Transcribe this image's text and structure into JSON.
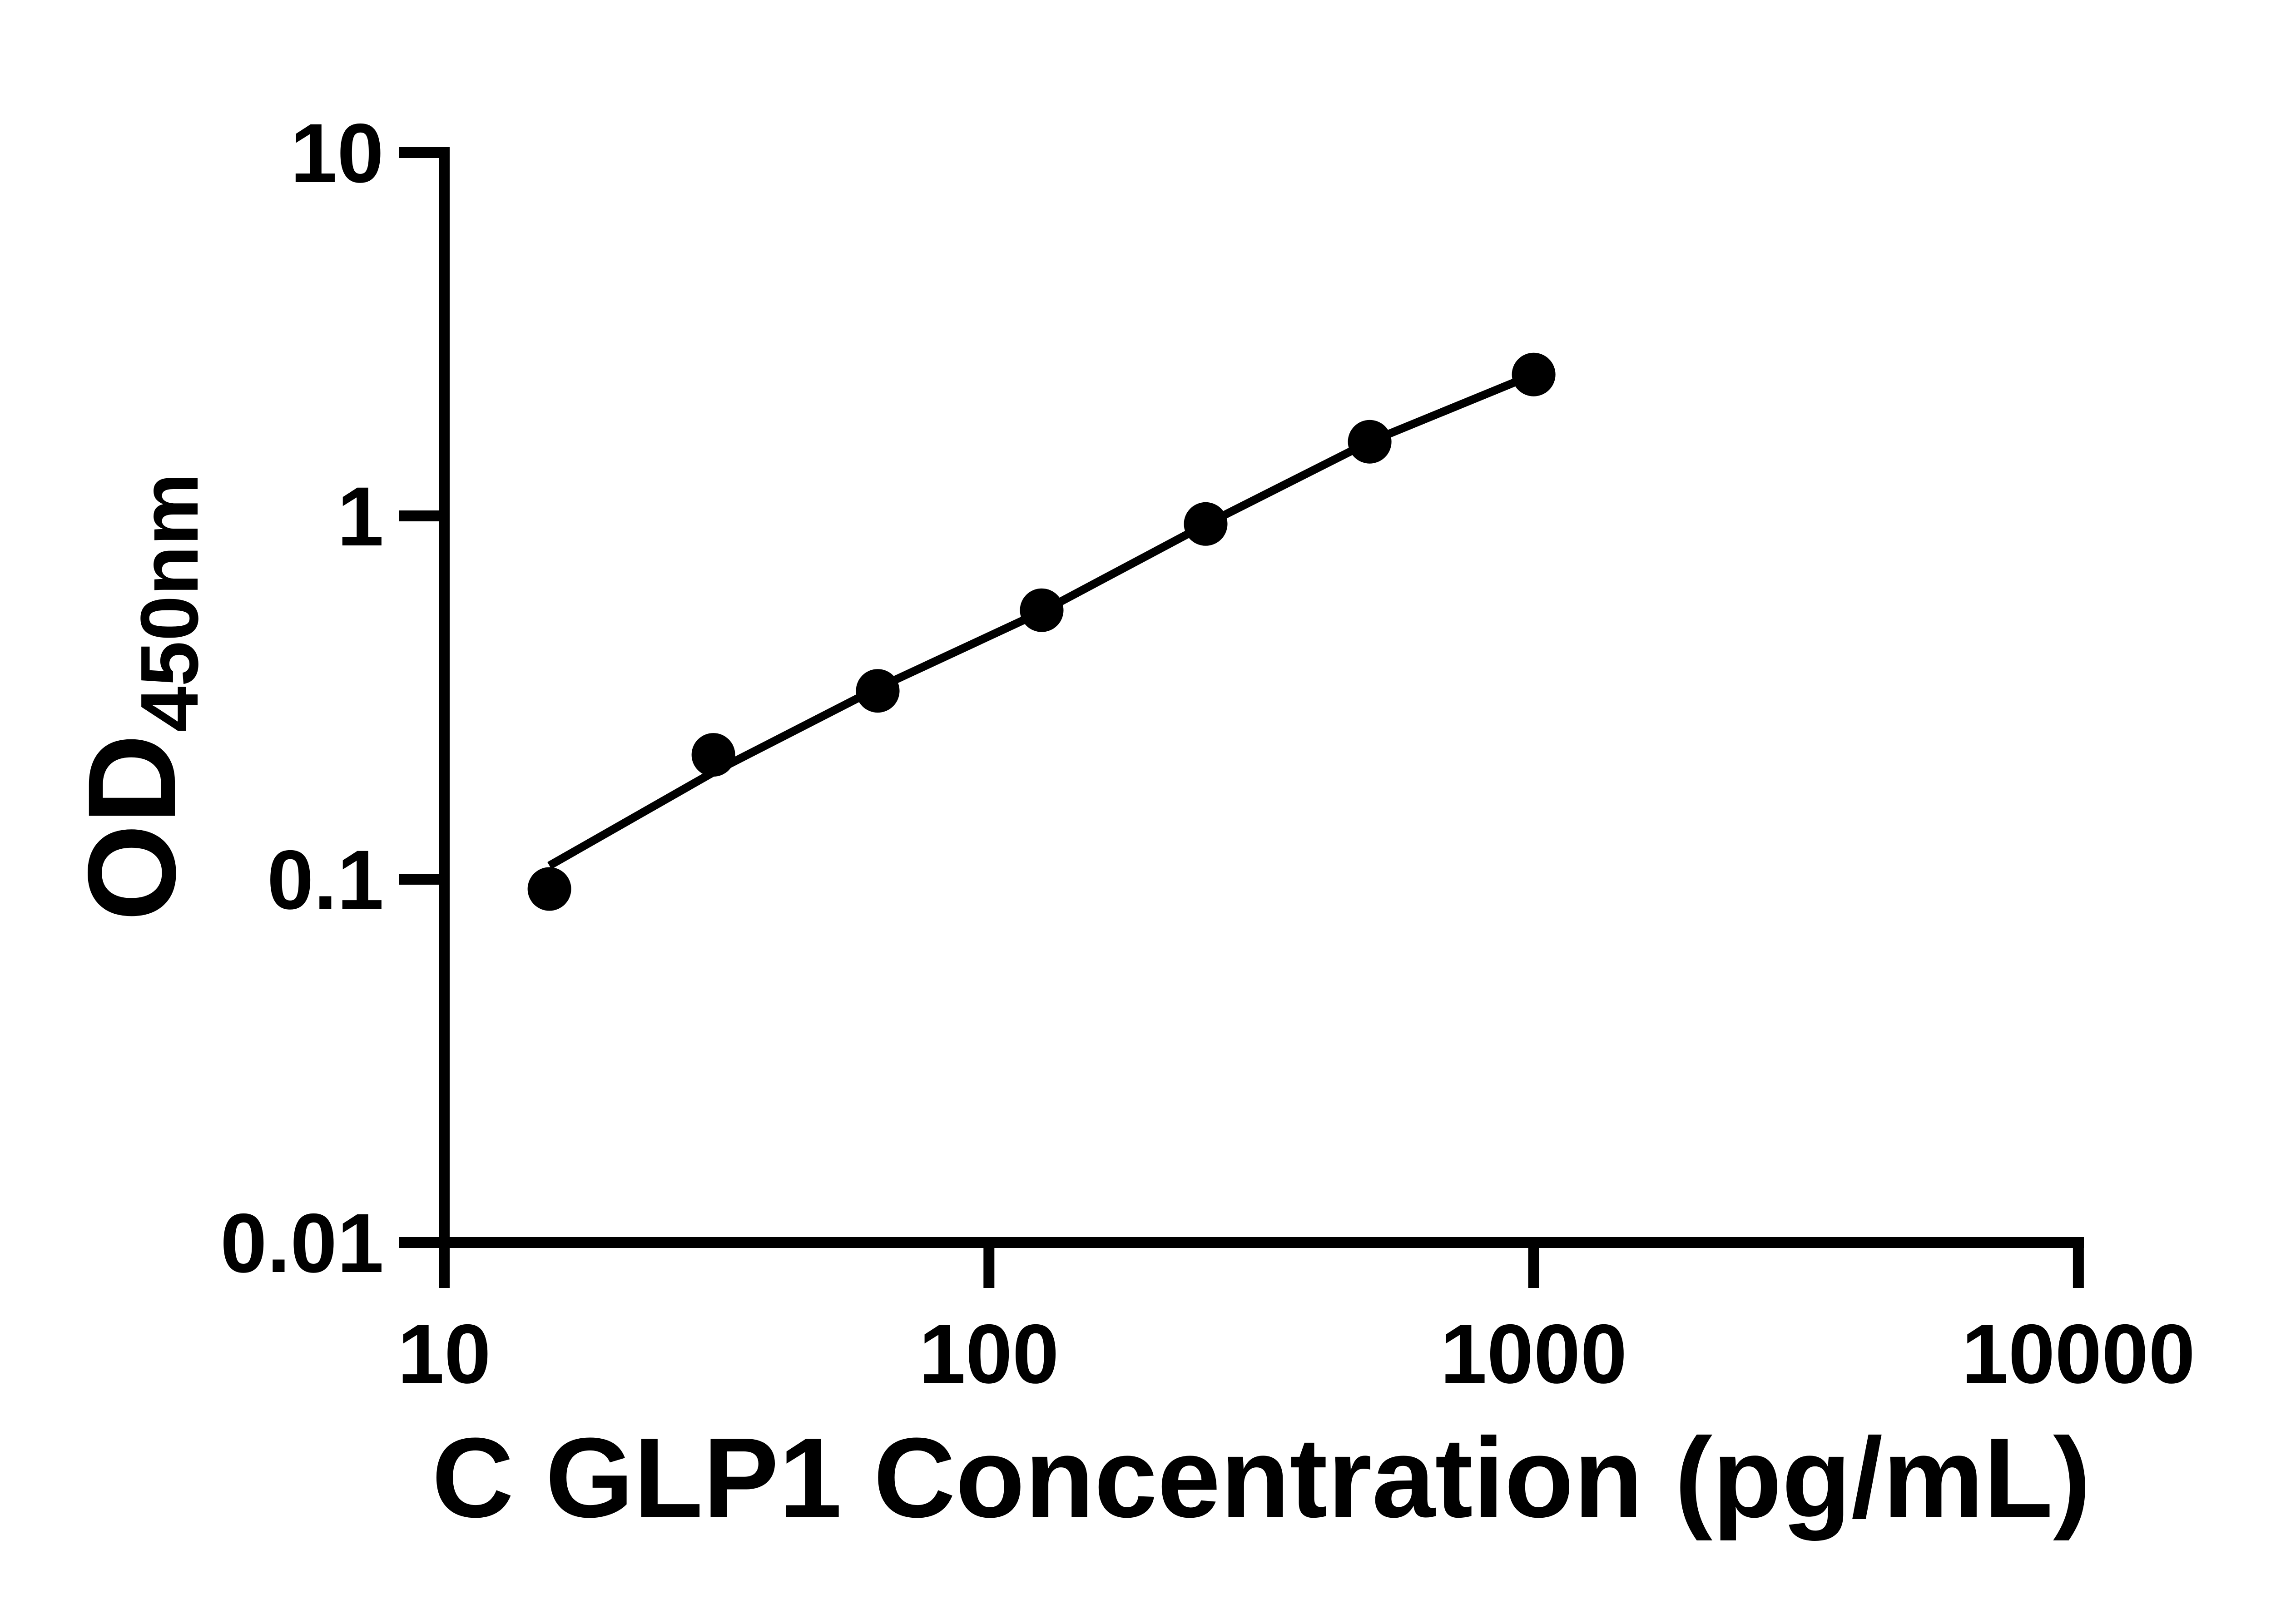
{
  "figure": {
    "background_color": "#ffffff",
    "ink_color": "#000000"
  },
  "chart_data": {
    "type": "scatter",
    "title": "",
    "xlabel": "C GLP1 Concentration (pg/mL)",
    "ylabel_main": "OD",
    "ylabel_sub": "450nm",
    "x_scale": "log",
    "y_scale": "log",
    "xlim": [
      10,
      10000
    ],
    "ylim": [
      0.01,
      10
    ],
    "x_ticks": [
      10,
      100,
      1000,
      10000
    ],
    "x_tick_labels": [
      "10",
      "100",
      "1000",
      "10000"
    ],
    "y_ticks": [
      10,
      1,
      0.1,
      0.01
    ],
    "y_tick_labels": [
      "10",
      "1",
      "0.1",
      "0.01"
    ],
    "grid": false,
    "legend": null,
    "series": [
      {
        "name": "standard-points",
        "kind": "scatter",
        "marker": "filled-circle",
        "color": "#000000",
        "x": [
          15.6,
          31.2,
          62.5,
          125,
          250,
          500,
          1000
        ],
        "y": [
          0.094,
          0.22,
          0.33,
          0.55,
          0.95,
          1.6,
          2.45
        ]
      },
      {
        "name": "fit-line",
        "kind": "line",
        "color": "#000000",
        "x": [
          15.6,
          31.2,
          62.5,
          125,
          250,
          500,
          1000
        ],
        "y": [
          0.109,
          0.197,
          0.336,
          0.545,
          0.947,
          1.6,
          2.45
        ]
      }
    ]
  }
}
